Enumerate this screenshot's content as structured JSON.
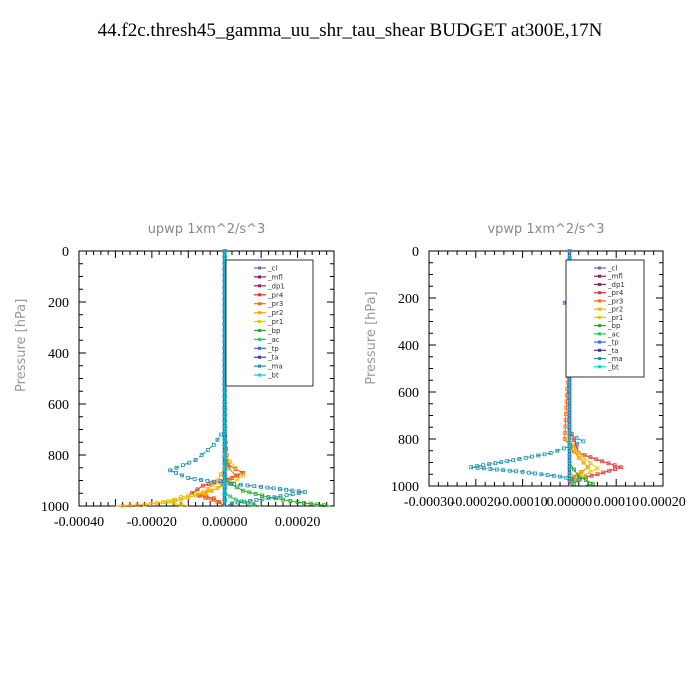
{
  "page_title": "44.f2c.thresh45_gamma_uu_shr_tau_shear  BUDGET at300E,17N",
  "chart_data": [
    {
      "type": "line",
      "title": "upwp   1xm^2/s^3",
      "ylabel": "Pressure [hPa]",
      "xlabel": "",
      "xlim": [
        -0.0004,
        0.0003
      ],
      "ylim": [
        1000,
        0
      ],
      "xticks": [
        -0.0004,
        -0.0002,
        0.0,
        0.0002
      ],
      "xtick_labels": [
        "-0.00040",
        "-0.00020",
        "0.00000",
        "0.00020"
      ],
      "yticks": [
        0,
        200,
        400,
        600,
        800,
        1000
      ],
      "ytick_labels": [
        "0",
        "200",
        "400",
        "600",
        "800",
        "1000"
      ],
      "legend_position": "top-right",
      "series": [
        {
          "name": "_cl",
          "color": "#7f5f9f",
          "marker": "square",
          "points": [
            [
              0,
              0
            ],
            [
              0,
              850
            ],
            [
              0,
              1000
            ]
          ]
        },
        {
          "name": "_mfl",
          "color": "#8b1a6b",
          "marker": "triangle-left",
          "points": [
            [
              0,
              0
            ],
            [
              0,
              500
            ],
            [
              0,
              1000
            ]
          ]
        },
        {
          "name": "_dp1",
          "color": "#a0204a",
          "marker": "diamond",
          "points": [
            [
              0,
              0
            ],
            [
              0,
              1000
            ]
          ]
        },
        {
          "name": "_pr4",
          "color": "#e83030",
          "marker": "star",
          "points": [
            [
              0,
              700
            ],
            [
              5e-06,
              800
            ],
            [
              1e-05,
              840
            ],
            [
              5e-05,
              870
            ],
            [
              2e-05,
              890
            ],
            [
              -6e-05,
              920
            ],
            [
              -9e-05,
              950
            ],
            [
              -3e-05,
              970
            ],
            [
              0,
              1000
            ]
          ]
        },
        {
          "name": "_pr3",
          "color": "#ff6a00",
          "marker": "triangle-down",
          "points": [
            [
              0,
              800
            ],
            [
              1e-05,
              850
            ],
            [
              3e-05,
              880
            ],
            [
              -2e-05,
              930
            ],
            [
              -7e-05,
              960
            ],
            [
              -2e-05,
              985
            ],
            [
              0,
              1000
            ]
          ]
        },
        {
          "name": "_pr2",
          "color": "#ffaa00",
          "marker": "triangle-up",
          "points": [
            [
              0,
              850
            ],
            [
              -2e-05,
              900
            ],
            [
              -6e-05,
              950
            ],
            [
              -0.00012,
              975
            ],
            [
              -0.00022,
              995
            ],
            [
              -0.0003,
              1000
            ]
          ]
        },
        {
          "name": "_pr1",
          "color": "#e0c800",
          "marker": "square-open",
          "points": [
            [
              0,
              800
            ],
            [
              3e-05,
              850
            ],
            [
              5e-05,
              880
            ],
            [
              2e-05,
              910
            ],
            [
              -4e-05,
              940
            ],
            [
              -0.00012,
              965
            ],
            [
              -0.00016,
              985
            ],
            [
              -0.0001,
              1000
            ]
          ]
        },
        {
          "name": "_bp",
          "color": "#22aa22",
          "marker": "cross",
          "points": [
            [
              0,
              900
            ],
            [
              5e-05,
              940
            ],
            [
              0.00012,
              965
            ],
            [
              0.0002,
              985
            ],
            [
              0.00029,
              1000
            ]
          ]
        },
        {
          "name": "_ac",
          "color": "#22cc55",
          "marker": "circle-open",
          "points": [
            [
              0,
              950
            ],
            [
              3e-05,
              975
            ],
            [
              8e-05,
              995
            ],
            [
              0.0001,
              1000
            ]
          ]
        },
        {
          "name": "_tp",
          "color": "#3366ff",
          "marker": "asterisk",
          "points": [
            [
              0,
              0
            ],
            [
              0,
              1000
            ]
          ]
        },
        {
          "name": "_ta",
          "color": "#3a3aa0",
          "marker": "arrow",
          "points": [
            [
              0,
              0
            ],
            [
              0,
              1000
            ]
          ]
        },
        {
          "name": "_ma",
          "color": "#2090b0",
          "marker": "dash-dot",
          "points": [
            [
              0,
              700
            ],
            [
              -3e-05,
              760
            ],
            [
              -8e-05,
              820
            ],
            [
              -0.00015,
              860
            ],
            [
              -0.0001,
              890
            ],
            [
              -3e-05,
              905
            ],
            [
              0.0001,
              925
            ],
            [
              0.00022,
              945
            ],
            [
              0.00012,
              970
            ],
            [
              2e-05,
              990
            ],
            [
              0,
              1000
            ]
          ]
        },
        {
          "name": "_bt",
          "color": "#00d5d5",
          "marker": "diamond-filled",
          "points": [
            [
              0,
              0
            ],
            [
              0,
              1000
            ]
          ]
        }
      ]
    },
    {
      "type": "line",
      "title": "vpwp   1xm^2/s^3",
      "ylabel": "Pressure [hPa]",
      "xlabel": "",
      "xlim": [
        -0.0003,
        0.0002
      ],
      "ylim": [
        1000,
        0
      ],
      "xticks": [
        -0.0003,
        -0.0002,
        -0.0001,
        0.0,
        0.0001,
        0.0002
      ],
      "xtick_labels": [
        "-0.00030",
        "-0.00020",
        "-0.00010",
        "0.00000",
        "0.00010",
        "0.00020"
      ],
      "yticks": [
        0,
        200,
        400,
        600,
        800,
        1000
      ],
      "ytick_labels": [
        "0",
        "200",
        "400",
        "600",
        "800",
        "1000"
      ],
      "legend_position": "top-right",
      "series": [
        {
          "name": "_cl",
          "color": "#7f5f9f",
          "marker": "square",
          "points": [
            [
              0,
              0
            ],
            [
              0,
              1000
            ]
          ]
        },
        {
          "name": "_mfl",
          "color": "#8b1a6b",
          "marker": "triangle-left",
          "points": [
            [
              0,
              0
            ],
            [
              0,
              1000
            ]
          ]
        },
        {
          "name": "_dp1",
          "color": "#a0204a",
          "marker": "diamond",
          "points": [
            [
              0,
              0
            ],
            [
              0,
              1000
            ]
          ]
        },
        {
          "name": "_pr4",
          "color": "#e83030",
          "marker": "star",
          "points": [
            [
              0,
              200
            ],
            [
              0,
              750
            ],
            [
              2e-05,
              860
            ],
            [
              7e-05,
              895
            ],
            [
              0.00011,
              920
            ],
            [
              6e-05,
              950
            ],
            [
              1e-05,
              975
            ],
            [
              0,
              1000
            ]
          ]
        },
        {
          "name": "_pr3",
          "color": "#ff6a00",
          "marker": "triangle-down",
          "points": [
            [
              0,
              150
            ],
            [
              1e-05,
              220
            ],
            [
              0,
              400
            ],
            [
              -1e-05,
              800
            ],
            [
              2e-05,
              880
            ],
            [
              4e-05,
              920
            ],
            [
              1e-05,
              960
            ],
            [
              0,
              1000
            ]
          ]
        },
        {
          "name": "_pr2",
          "color": "#ffaa00",
          "marker": "triangle-up",
          "points": [
            [
              0,
              800
            ],
            [
              2e-05,
              880
            ],
            [
              4e-05,
              920
            ],
            [
              2e-05,
              950
            ],
            [
              0,
              1000
            ]
          ]
        },
        {
          "name": "_pr1",
          "color": "#e0c800",
          "marker": "square-open",
          "points": [
            [
              0,
              820
            ],
            [
              3e-05,
              880
            ],
            [
              6e-05,
              925
            ],
            [
              3e-05,
              955
            ],
            [
              0,
              1000
            ]
          ]
        },
        {
          "name": "_bp",
          "color": "#22aa22",
          "marker": "cross",
          "points": [
            [
              0,
              900
            ],
            [
              2e-05,
              960
            ],
            [
              5e-05,
              990
            ],
            [
              3e-05,
              1000
            ]
          ]
        },
        {
          "name": "_ac",
          "color": "#22cc55",
          "marker": "circle-open",
          "points": [
            [
              0,
              950
            ],
            [
              1e-05,
              990
            ],
            [
              0,
              1000
            ]
          ]
        },
        {
          "name": "_tp",
          "color": "#3366ff",
          "marker": "asterisk",
          "points": [
            [
              0,
              0
            ],
            [
              0,
              200
            ],
            [
              -1e-05,
              220
            ],
            [
              0,
              240
            ],
            [
              0,
              1000
            ]
          ]
        },
        {
          "name": "_ta",
          "color": "#3a3aa0",
          "marker": "arrow",
          "points": [
            [
              0,
              0
            ],
            [
              0,
              1000
            ]
          ]
        },
        {
          "name": "_ma",
          "color": "#2090b0",
          "marker": "dash-dot",
          "points": [
            [
              0,
              780
            ],
            [
              3e-05,
              810
            ],
            [
              -4e-05,
              860
            ],
            [
              -0.00012,
              890
            ],
            [
              -0.00021,
              920
            ],
            [
              -0.0001,
              940
            ],
            [
              -2e-05,
              960
            ],
            [
              2e-05,
              975
            ],
            [
              0,
              1000
            ]
          ]
        },
        {
          "name": "_bt",
          "color": "#00d5d5",
          "marker": "diamond-filled",
          "points": [
            [
              0,
              0
            ],
            [
              0,
              1000
            ]
          ]
        }
      ]
    }
  ]
}
